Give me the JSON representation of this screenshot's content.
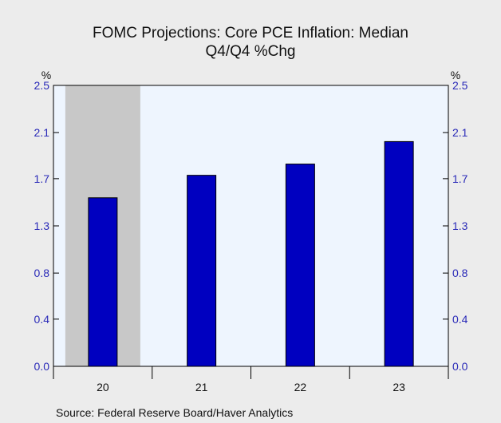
{
  "chart_data": {
    "type": "bar",
    "title": "FOMC Projections: Core PCE Inflation: Median",
    "subtitle": "Q4/Q4 %Chg",
    "categories": [
      "20",
      "21",
      "22",
      "23"
    ],
    "values": [
      1.5,
      1.7,
      1.8,
      2.0
    ],
    "y_unit_left": "%",
    "y_unit_right": "%",
    "ylim": [
      0.0,
      2.5
    ],
    "y_ticks": [
      "0.0",
      "0.4",
      "0.8",
      "1.3",
      "1.7",
      "2.1",
      "2.5"
    ],
    "y_tick_values": [
      0.0,
      0.42,
      0.83,
      1.25,
      1.67,
      2.08,
      2.5
    ],
    "shaded_category": "20",
    "grid": false,
    "colors": {
      "bar": "#0000c0",
      "bar_stroke": "#000000",
      "plot_background": "#eef5fe",
      "shading": "#c8c8c8",
      "tick_label": "#2a2ab8"
    }
  },
  "source": "Source:  Federal Reserve Board/Haver Analytics"
}
